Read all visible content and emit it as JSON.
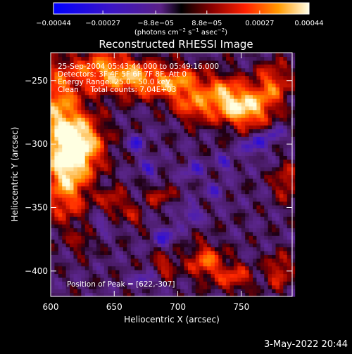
{
  "chart_data": {
    "type": "heatmap",
    "title": "Reconstructed RHESSI Image",
    "xlabel": "Heliocentric X (arcsec)",
    "ylabel": "Heliocentric Y (arcsec)",
    "xlim": [
      600,
      790
    ],
    "ylim": [
      -420,
      -228
    ],
    "x_ticks": [
      600,
      650,
      700,
      750
    ],
    "y_ticks": [
      -250,
      -300,
      -350,
      -400
    ],
    "x_tick_labels": [
      "600",
      "650",
      "700",
      "750"
    ],
    "y_tick_labels": [
      "−250",
      "−300",
      "−350",
      "−400"
    ],
    "colorbar": {
      "min": -0.00044,
      "max": 0.00044,
      "tick_values": [
        -0.00044,
        -0.00027,
        -8.8e-05,
        8.8e-05,
        0.00027,
        0.00044
      ],
      "tick_labels": [
        "−0.00044",
        "−0.00027",
        "−8.8e−05",
        "8.8e−05",
        "0.00027",
        "0.00044"
      ],
      "unit_label": "(photons cm",
      "unit_sup1": "−2",
      "unit_mid": " s",
      "unit_sup2": "−1",
      "unit_tail": " asec",
      "unit_sup3": "−2",
      "unit_close": ")"
    },
    "annotations": [
      "25-Sep-2004 05:43:44.000 to 05:49:16.000",
      "Detectors: 3F 4F 5F 6F 7F 8F, Att 0",
      "Energy Range: 25.0 - 50.0 keV",
      "Clean     Total counts: 7.04E+03"
    ],
    "peak_label": "Position of Peak = [622,-307]",
    "peak": {
      "x": 622,
      "y": -307
    },
    "blobs": [
      {
        "x": 622,
        "y": -300,
        "sx": 14,
        "sy": 16,
        "a": 1.25
      },
      {
        "x": 612,
        "y": -330,
        "sx": 12,
        "sy": 22,
        "a": 0.9
      },
      {
        "x": 605,
        "y": -270,
        "sx": 12,
        "sy": 25,
        "a": 0.85
      },
      {
        "x": 640,
        "y": -242,
        "sx": 16,
        "sy": 12,
        "a": 0.85
      },
      {
        "x": 668,
        "y": -248,
        "sx": 14,
        "sy": 10,
        "a": 0.8
      },
      {
        "x": 700,
        "y": -252,
        "sx": 14,
        "sy": 10,
        "a": 0.9
      },
      {
        "x": 712,
        "y": -272,
        "sx": 10,
        "sy": 8,
        "a": 0.6
      },
      {
        "x": 735,
        "y": -262,
        "sx": 12,
        "sy": 12,
        "a": 0.85
      },
      {
        "x": 755,
        "y": -272,
        "sx": 13,
        "sy": 11,
        "a": 1.05
      },
      {
        "x": 775,
        "y": -252,
        "sx": 10,
        "sy": 12,
        "a": 0.7
      },
      {
        "x": 650,
        "y": -345,
        "sx": 8,
        "sy": 7,
        "a": 0.55
      },
      {
        "x": 665,
        "y": -358,
        "sx": 6,
        "sy": 5,
        "a": 0.45
      },
      {
        "x": 685,
        "y": -340,
        "sx": 8,
        "sy": 6,
        "a": 0.45
      },
      {
        "x": 625,
        "y": -378,
        "sx": 6,
        "sy": 6,
        "a": 0.35
      },
      {
        "x": 690,
        "y": -395,
        "sx": 7,
        "sy": 7,
        "a": 0.5
      },
      {
        "x": 722,
        "y": -392,
        "sx": 10,
        "sy": 10,
        "a": 0.75
      },
      {
        "x": 745,
        "y": -405,
        "sx": 10,
        "sy": 8,
        "a": 0.6
      },
      {
        "x": 785,
        "y": -330,
        "sx": 7,
        "sy": 10,
        "a": 0.55
      },
      {
        "x": 780,
        "y": -400,
        "sx": 7,
        "sy": 10,
        "a": 0.6
      },
      {
        "x": 668,
        "y": -300,
        "sx": 5,
        "sy": 5,
        "a": -0.55
      },
      {
        "x": 678,
        "y": -320,
        "sx": 5,
        "sy": 5,
        "a": -0.45
      },
      {
        "x": 712,
        "y": -320,
        "sx": 6,
        "sy": 6,
        "a": -0.4
      },
      {
        "x": 738,
        "y": -315,
        "sx": 5,
        "sy": 5,
        "a": -0.45
      },
      {
        "x": 760,
        "y": -300,
        "sx": 7,
        "sy": 6,
        "a": -0.55
      },
      {
        "x": 775,
        "y": -292,
        "sx": 5,
        "sy": 5,
        "a": -0.45
      },
      {
        "x": 710,
        "y": -355,
        "sx": 6,
        "sy": 5,
        "a": -0.5
      },
      {
        "x": 690,
        "y": -372,
        "sx": 6,
        "sy": 6,
        "a": -0.5
      },
      {
        "x": 730,
        "y": -338,
        "sx": 5,
        "sy": 5,
        "a": -0.4
      },
      {
        "x": 640,
        "y": -362,
        "sx": 5,
        "sy": 5,
        "a": -0.35
      },
      {
        "x": 675,
        "y": -406,
        "sx": 6,
        "sy": 4,
        "a": -0.45
      }
    ]
  },
  "footer": {
    "timestamp": "3-May-2022 20:44"
  }
}
